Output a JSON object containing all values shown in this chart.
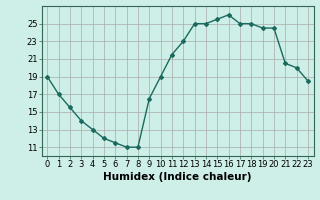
{
  "x": [
    0,
    1,
    2,
    3,
    4,
    5,
    6,
    7,
    8,
    9,
    10,
    11,
    12,
    13,
    14,
    15,
    16,
    17,
    18,
    19,
    20,
    21,
    22,
    23
  ],
  "y": [
    19,
    17,
    15.5,
    14,
    13,
    12,
    11.5,
    11,
    11,
    16.5,
    19,
    21.5,
    23,
    25,
    25,
    25.5,
    26,
    25,
    25,
    24.5,
    24.5,
    20.5,
    20,
    18.5
  ],
  "line_color": "#1a6b5e",
  "marker": "D",
  "marker_size": 2,
  "bg_color": "#ceeee8",
  "grid_color": "#aaaaaa",
  "xlabel": "Humidex (Indice chaleur)",
  "ylim": [
    10,
    27
  ],
  "xlim": [
    -0.5,
    23.5
  ],
  "yticks": [
    11,
    13,
    15,
    17,
    19,
    21,
    23,
    25
  ],
  "xticks": [
    0,
    1,
    2,
    3,
    4,
    5,
    6,
    7,
    8,
    9,
    10,
    11,
    12,
    13,
    14,
    15,
    16,
    17,
    18,
    19,
    20,
    21,
    22,
    23
  ],
  "tick_fontsize": 6,
  "xlabel_fontsize": 7.5,
  "linewidth": 1.0
}
